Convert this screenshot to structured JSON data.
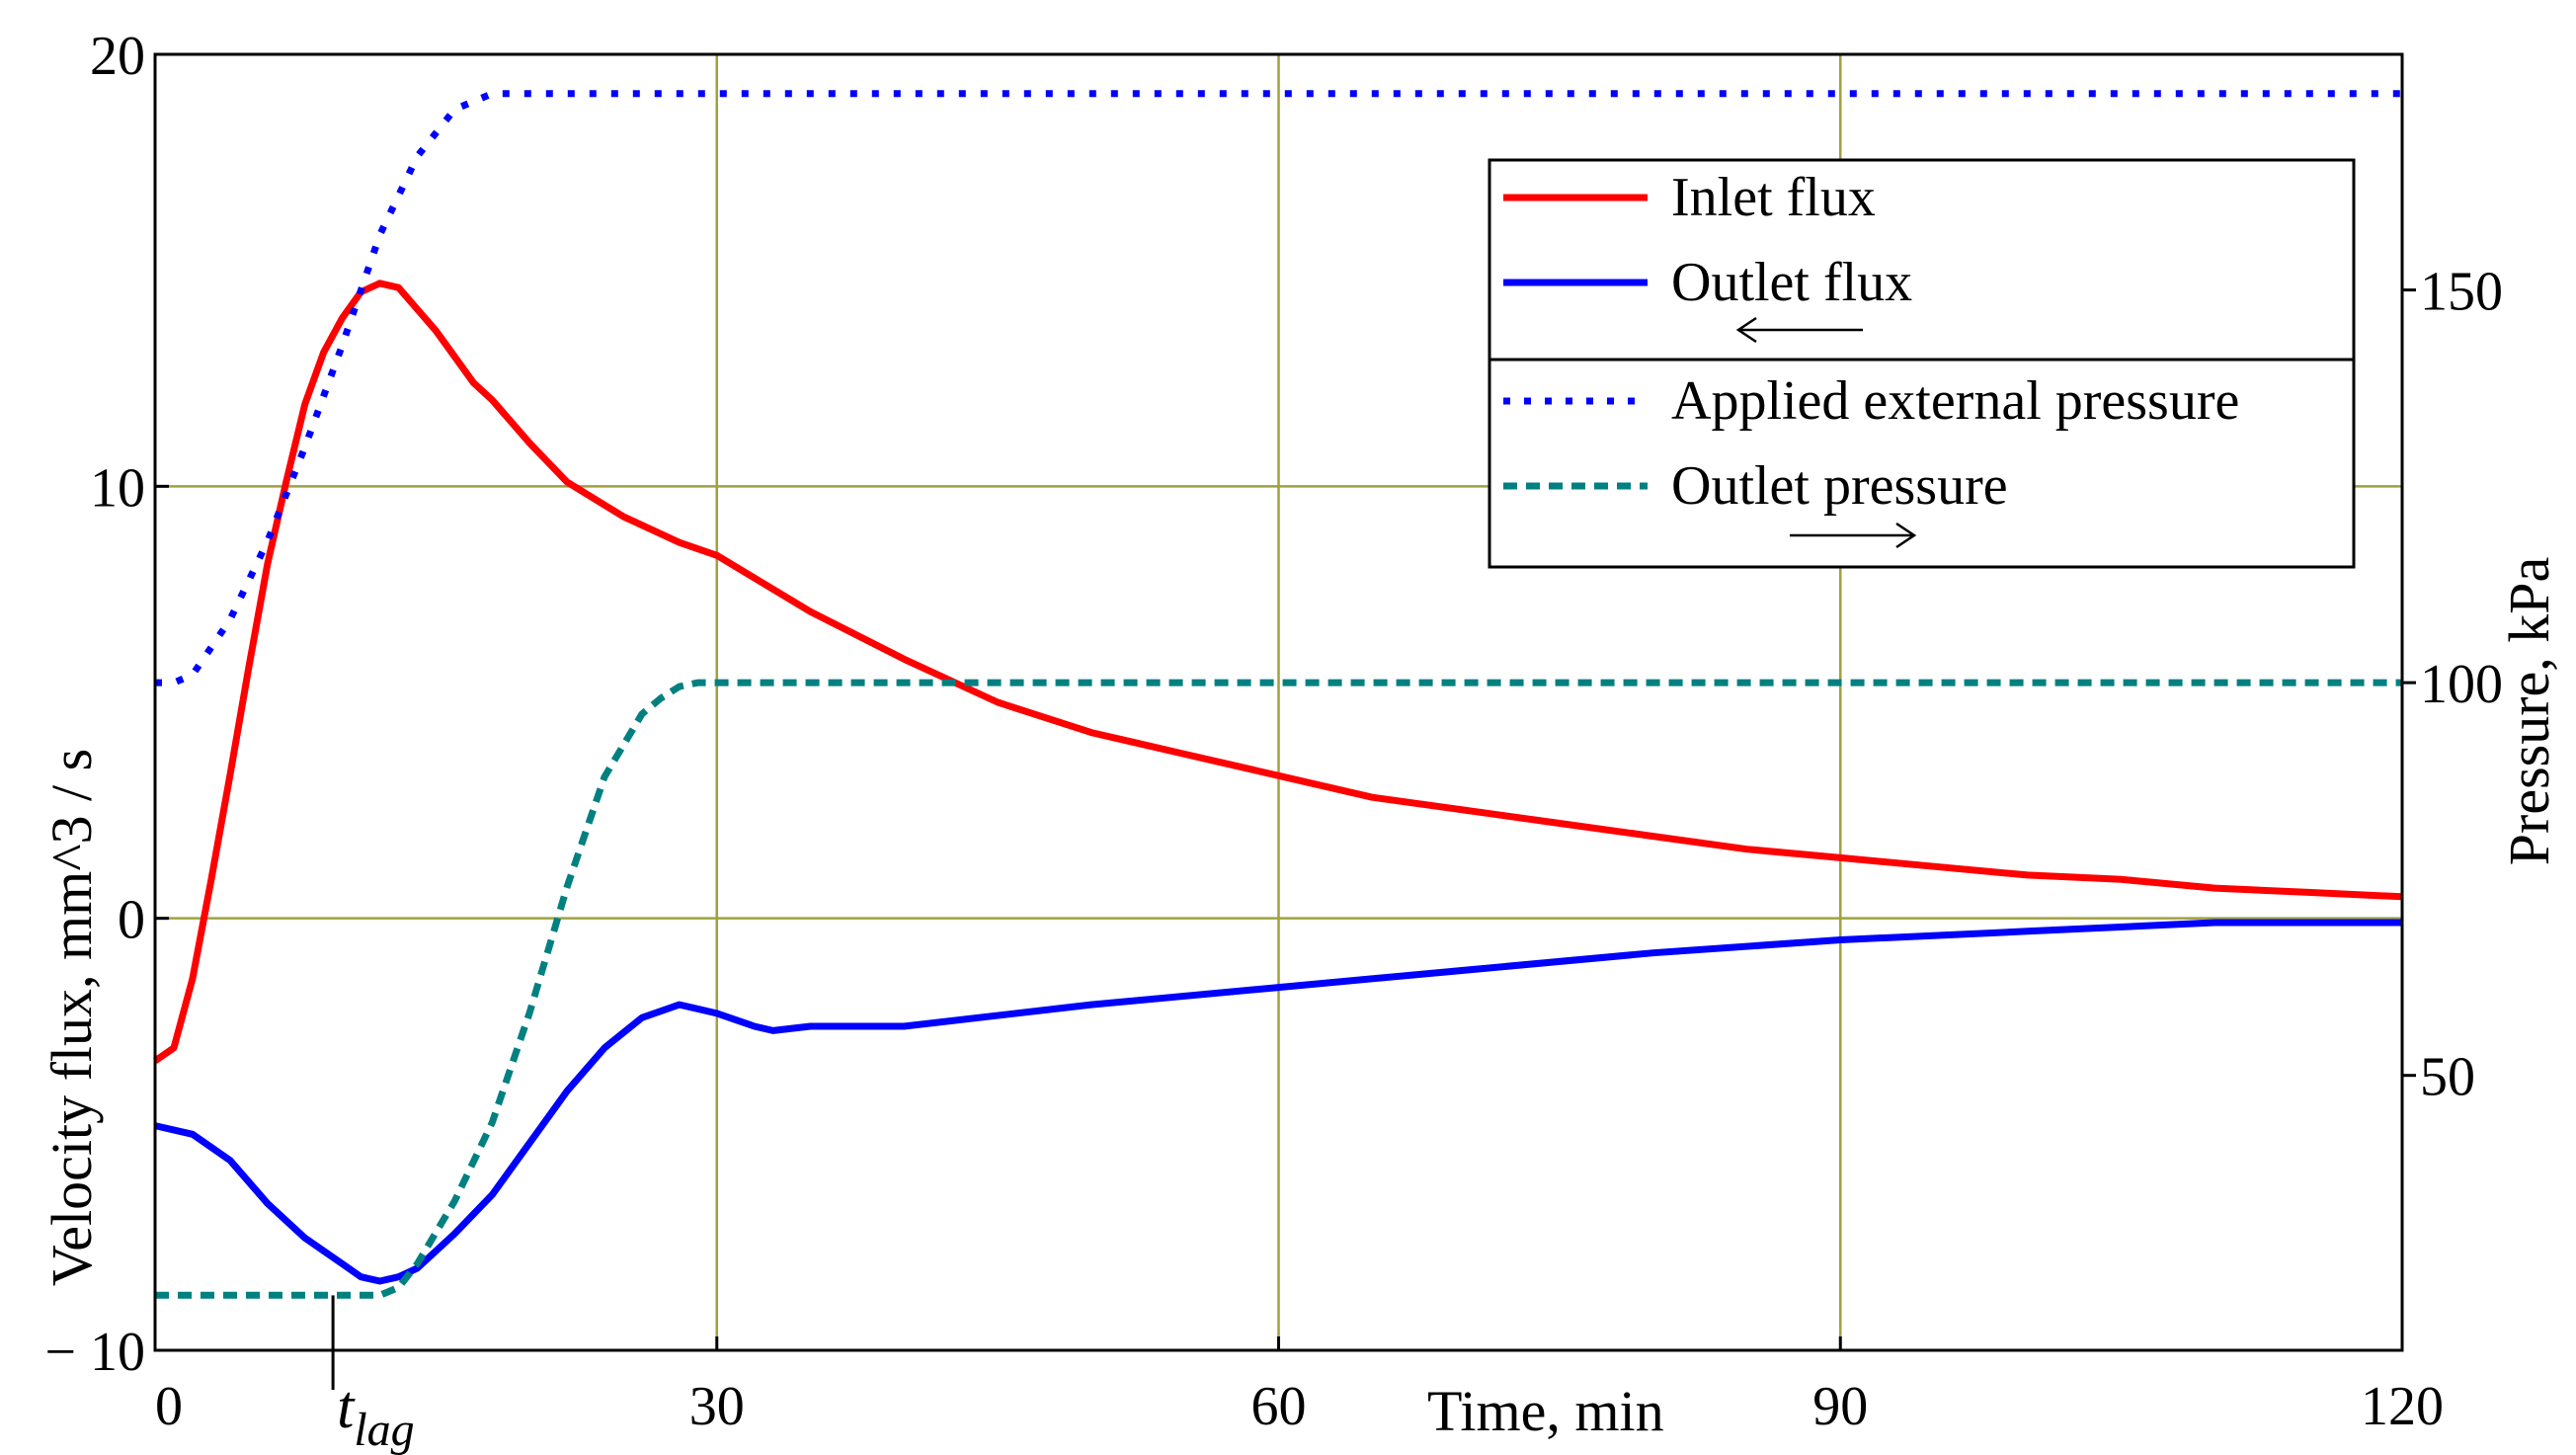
{
  "chart_data": {
    "type": "line",
    "x_label": "Time, min",
    "y_left_label": "Velocity flux, mm^3 / s",
    "y_right_label": "Pressure, kPa",
    "x_range": [
      0,
      120
    ],
    "y_left_range": [
      -10,
      20
    ],
    "y_right_range": [
      15,
      180
    ],
    "x_ticks": [
      {
        "value": 0,
        "label": "0"
      },
      {
        "value": 30,
        "label": "30"
      },
      {
        "value": 60,
        "label": "60"
      },
      {
        "value": 90,
        "label": "90"
      },
      {
        "value": 120,
        "label": "120"
      }
    ],
    "y_left_ticks": [
      {
        "value": 20,
        "label": "20"
      },
      {
        "value": 10,
        "label": "10"
      },
      {
        "value": 0,
        "label": "0"
      },
      {
        "value": -10,
        "label": "− 10"
      }
    ],
    "y_right_ticks": [
      {
        "value": 150,
        "label": "150"
      },
      {
        "value": 100,
        "label": "100"
      },
      {
        "value": 50,
        "label": "50"
      }
    ],
    "grid": true,
    "annotation": {
      "text": "t",
      "subscript": "lag",
      "x": 9.5
    },
    "legend": {
      "position": "top-right",
      "groups": [
        {
          "axis_arrow": "left",
          "entries": [
            "Inlet flux",
            "Outlet flux"
          ]
        },
        {
          "axis_arrow": "right",
          "entries": [
            "Applied external pressure",
            "Outlet pressure"
          ]
        }
      ]
    },
    "series": [
      {
        "name": "Inlet flux",
        "axis": "left",
        "color": "#ff0000",
        "style": "solid",
        "x": [
          0,
          1,
          2,
          3,
          4,
          5,
          6,
          7,
          8,
          9,
          10,
          11,
          12,
          13,
          14,
          15,
          16,
          17,
          18,
          20,
          22,
          25,
          28,
          30,
          35,
          40,
          45,
          50,
          55,
          60,
          65,
          70,
          75,
          80,
          85,
          90,
          95,
          100,
          105,
          110,
          115,
          120
        ],
        "y": [
          -3.3,
          -3.0,
          -1.4,
          0.9,
          3.3,
          5.8,
          8.2,
          10.1,
          11.9,
          13.1,
          13.9,
          14.5,
          14.7,
          14.6,
          14.1,
          13.6,
          13.0,
          12.4,
          12.0,
          11.0,
          10.1,
          9.3,
          8.7,
          8.4,
          7.1,
          6.0,
          5.0,
          4.3,
          3.8,
          3.3,
          2.8,
          2.5,
          2.2,
          1.9,
          1.6,
          1.4,
          1.2,
          1.0,
          0.9,
          0.7,
          0.6,
          0.5
        ]
      },
      {
        "name": "Outlet flux",
        "axis": "left",
        "color": "#0000ff",
        "style": "solid",
        "x": [
          0,
          2,
          4,
          6,
          8,
          10,
          11,
          12,
          13,
          14,
          15,
          16,
          18,
          20,
          22,
          24,
          26,
          28,
          30,
          32,
          33,
          35,
          40,
          50,
          60,
          70,
          80,
          90,
          100,
          110,
          120
        ],
        "y": [
          -4.8,
          -5.0,
          -5.6,
          -6.6,
          -7.4,
          -8.0,
          -8.3,
          -8.4,
          -8.3,
          -8.1,
          -7.7,
          -7.3,
          -6.4,
          -5.2,
          -4.0,
          -3.0,
          -2.3,
          -2.0,
          -2.2,
          -2.5,
          -2.6,
          -2.5,
          -2.5,
          -2.0,
          -1.6,
          -1.2,
          -0.8,
          -0.5,
          -0.3,
          -0.1,
          -0.1
        ]
      },
      {
        "name": "Applied external pressure",
        "axis": "right",
        "color": "#0000ff",
        "style": "dotted",
        "x": [
          0,
          1,
          2,
          4,
          6,
          8,
          10,
          12,
          14,
          16,
          17,
          18,
          19,
          120
        ],
        "y": [
          100,
          100,
          101,
          108,
          118,
          130,
          143,
          157,
          167,
          173,
          174,
          175,
          175,
          175
        ]
      },
      {
        "name": "Outlet pressure",
        "axis": "right",
        "color": "#008080",
        "style": "dashed",
        "x": [
          0,
          9,
          12,
          13,
          14,
          16,
          18,
          20,
          22,
          24,
          26,
          27,
          28,
          29,
          30,
          120
        ],
        "y": [
          22,
          22,
          22,
          23,
          26,
          34,
          44,
          58,
          74,
          88,
          96,
          98,
          99.5,
          100,
          100,
          100
        ]
      }
    ]
  }
}
